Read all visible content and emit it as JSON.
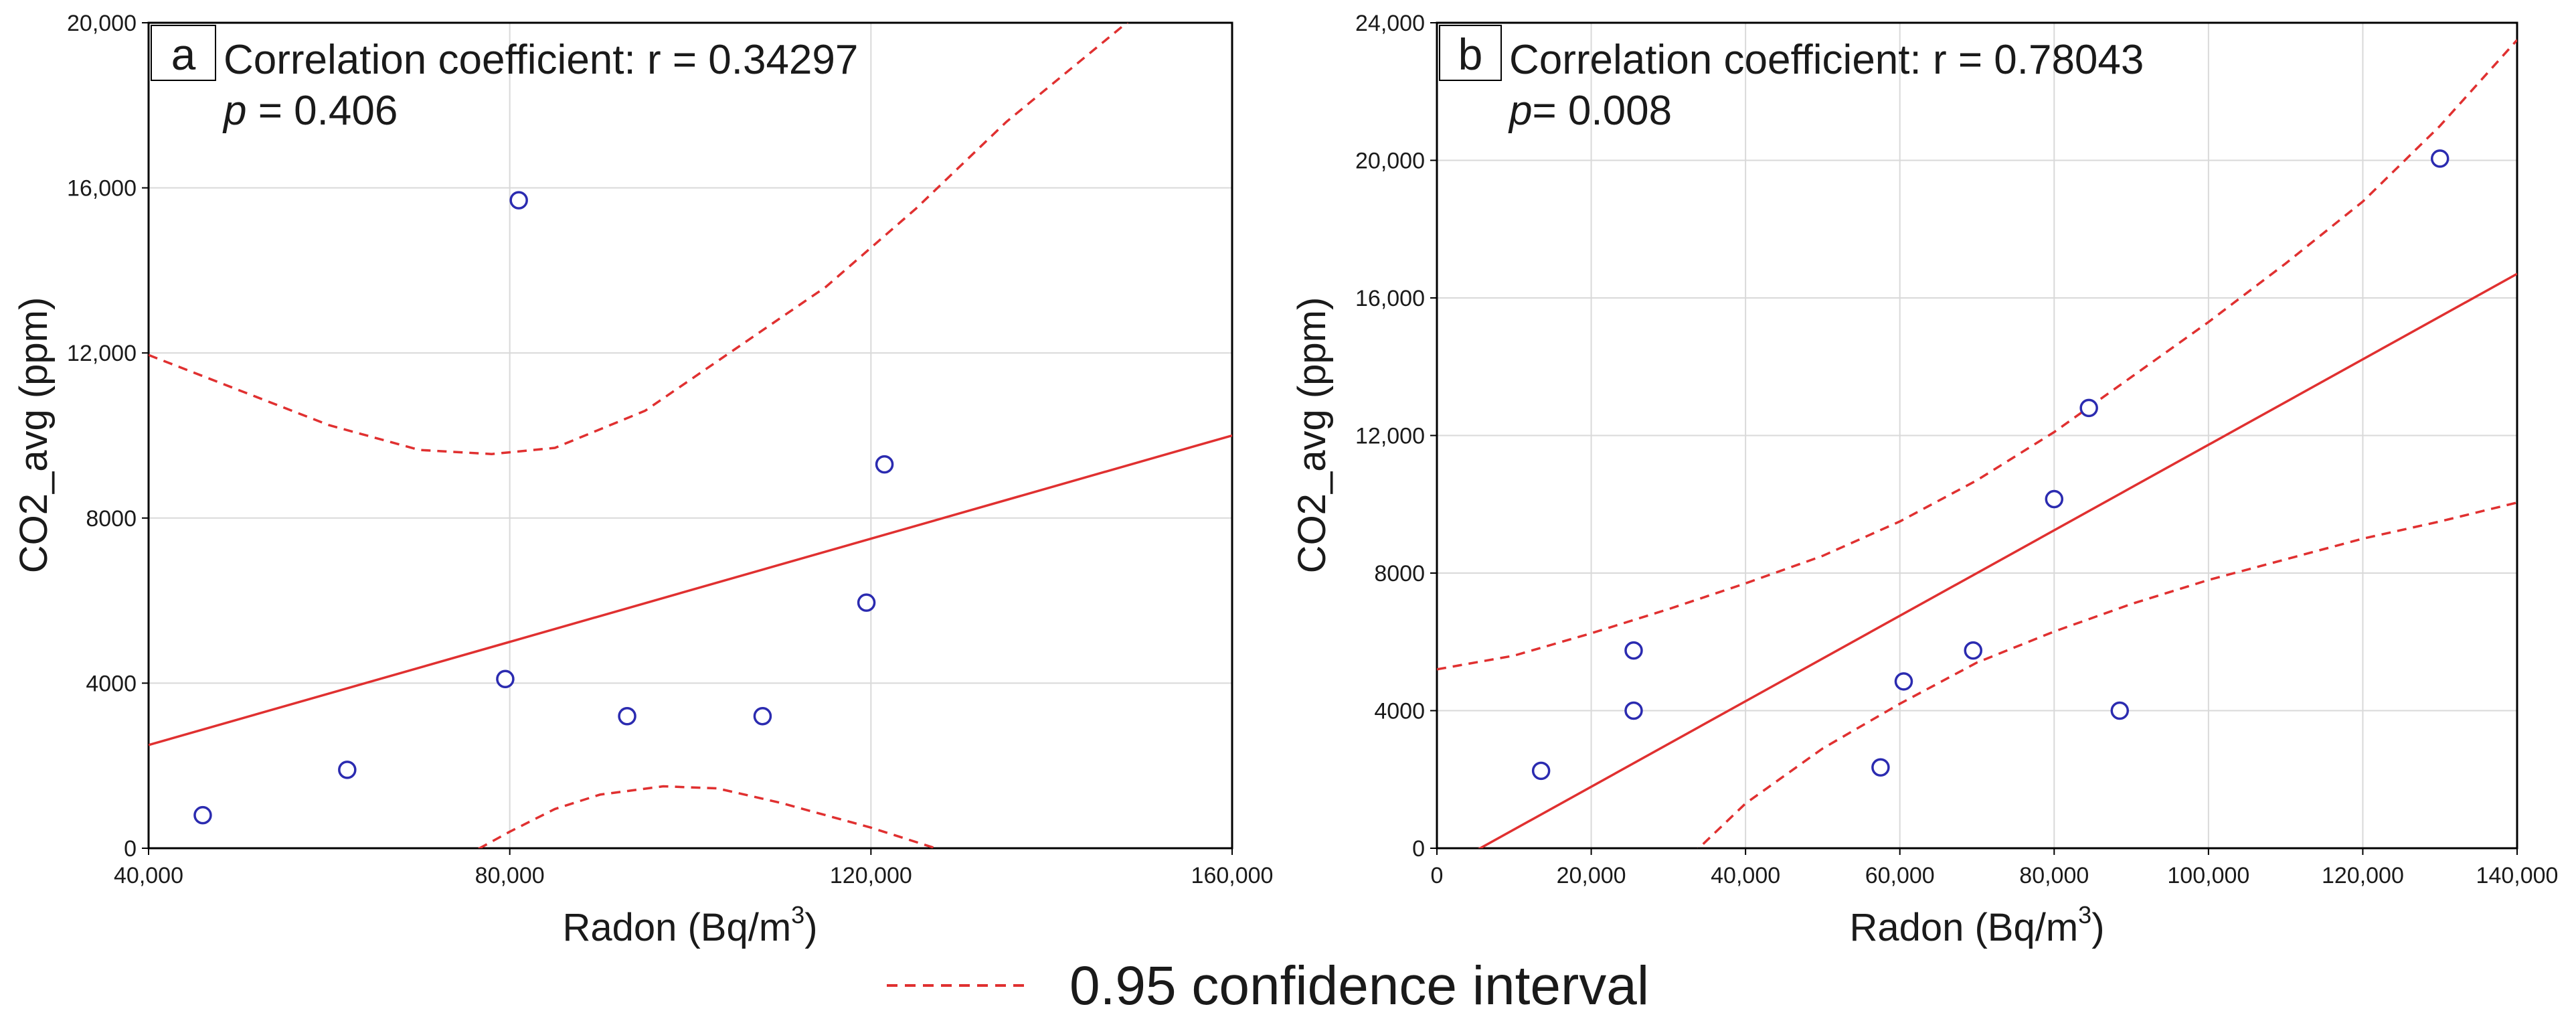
{
  "chart_data": [
    {
      "type": "scatter",
      "panel_label": "a",
      "correlation_text": "Correlation coefficient: r = 0.34297",
      "p_symbol": "p",
      "p_text": " = 0.406",
      "xlabel": "Radon (Bq/m",
      "xlabel_sup": "3",
      "xlabel_close": ")",
      "ylabel": "CO2_avg (ppm)",
      "xlim": [
        40000,
        160000
      ],
      "ylim": [
        0,
        20000
      ],
      "xticks": [
        40000,
        80000,
        120000,
        160000
      ],
      "xtick_labels": [
        "40,000",
        "80,000",
        "120,000",
        "160,000"
      ],
      "yticks": [
        0,
        4000,
        8000,
        12000,
        16000,
        20000
      ],
      "ytick_labels": [
        "0",
        "4000",
        "8000",
        "12,000",
        "16,000",
        "20,000"
      ],
      "grid": true,
      "points": [
        {
          "x": 46000,
          "y": 800
        },
        {
          "x": 62000,
          "y": 1900
        },
        {
          "x": 79500,
          "y": 4100
        },
        {
          "x": 81000,
          "y": 15700
        },
        {
          "x": 93000,
          "y": 3200
        },
        {
          "x": 108000,
          "y": 3200
        },
        {
          "x": 119500,
          "y": 5950
        },
        {
          "x": 121500,
          "y": 9300
        }
      ],
      "fit_line": [
        [
          40000,
          2500
        ],
        [
          160000,
          10000
        ]
      ],
      "ci_upper": [
        [
          40000,
          11950
        ],
        [
          50000,
          11100
        ],
        [
          60000,
          10250
        ],
        [
          70000,
          9650
        ],
        [
          78000,
          9550
        ],
        [
          85000,
          9700
        ],
        [
          95000,
          10600
        ],
        [
          105000,
          12100
        ],
        [
          115000,
          13600
        ],
        [
          125000,
          15500
        ],
        [
          135000,
          17600
        ],
        [
          145000,
          19400
        ],
        [
          150000,
          20300
        ]
      ],
      "ci_lower": [
        [
          75000,
          -200
        ],
        [
          80000,
          400
        ],
        [
          85000,
          950
        ],
        [
          90000,
          1300
        ],
        [
          97000,
          1500
        ],
        [
          103000,
          1450
        ],
        [
          110000,
          1100
        ],
        [
          120000,
          500
        ],
        [
          130000,
          -200
        ]
      ],
      "fit_color": "#e03030",
      "point_color": "#2b2bb0",
      "grid_color": "#d9d9d9"
    },
    {
      "type": "scatter",
      "panel_label": "b",
      "correlation_text": "Correlation coefficient: r = 0.78043",
      "p_symbol": "p",
      "p_text": "= 0.008",
      "xlabel": "Radon (Bq/m",
      "xlabel_sup": "3",
      "xlabel_close": ")",
      "ylabel": "CO2_avg (ppm)",
      "xlim": [
        0,
        140000
      ],
      "ylim": [
        0,
        24000
      ],
      "xticks": [
        0,
        20000,
        40000,
        60000,
        80000,
        100000,
        120000,
        140000
      ],
      "xtick_labels": [
        "0",
        "20,000",
        "40,000",
        "60,000",
        "80,000",
        "100,000",
        "120,000",
        "140,000"
      ],
      "yticks": [
        0,
        4000,
        8000,
        12000,
        16000,
        20000,
        24000
      ],
      "ytick_labels": [
        "0",
        "4000",
        "8000",
        "12,000",
        "16,000",
        "20,000",
        "24,000"
      ],
      "grid": true,
      "points": [
        {
          "x": 13500,
          "y": 2250
        },
        {
          "x": 25500,
          "y": 4000
        },
        {
          "x": 25500,
          "y": 5750
        },
        {
          "x": 57500,
          "y": 2350
        },
        {
          "x": 60500,
          "y": 4850
        },
        {
          "x": 69500,
          "y": 5750
        },
        {
          "x": 80000,
          "y": 10150
        },
        {
          "x": 84500,
          "y": 12800
        },
        {
          "x": 88500,
          "y": 4000
        },
        {
          "x": 130000,
          "y": 20050
        }
      ],
      "fit_line": [
        [
          4000,
          -200
        ],
        [
          140000,
          16700
        ]
      ],
      "ci_upper": [
        [
          0,
          5200
        ],
        [
          10000,
          5600
        ],
        [
          20000,
          6250
        ],
        [
          30000,
          6950
        ],
        [
          40000,
          7700
        ],
        [
          50000,
          8500
        ],
        [
          60000,
          9500
        ],
        [
          70000,
          10700
        ],
        [
          80000,
          12100
        ],
        [
          90000,
          13700
        ],
        [
          100000,
          15300
        ],
        [
          110000,
          17000
        ],
        [
          120000,
          18800
        ],
        [
          130000,
          21000
        ],
        [
          140000,
          23500
        ]
      ],
      "ci_lower": [
        [
          33000,
          -200
        ],
        [
          40000,
          1300
        ],
        [
          50000,
          2900
        ],
        [
          60000,
          4200
        ],
        [
          70000,
          5400
        ],
        [
          80000,
          6300
        ],
        [
          90000,
          7100
        ],
        [
          100000,
          7800
        ],
        [
          110000,
          8400
        ],
        [
          120000,
          9000
        ],
        [
          130000,
          9500
        ],
        [
          140000,
          10050
        ]
      ],
      "fit_color": "#e03030",
      "point_color": "#2b2bb0",
      "grid_color": "#d9d9d9"
    }
  ],
  "legend": {
    "label": "0.95 confidence interval",
    "line_style": "dashed",
    "color": "#e03030"
  }
}
